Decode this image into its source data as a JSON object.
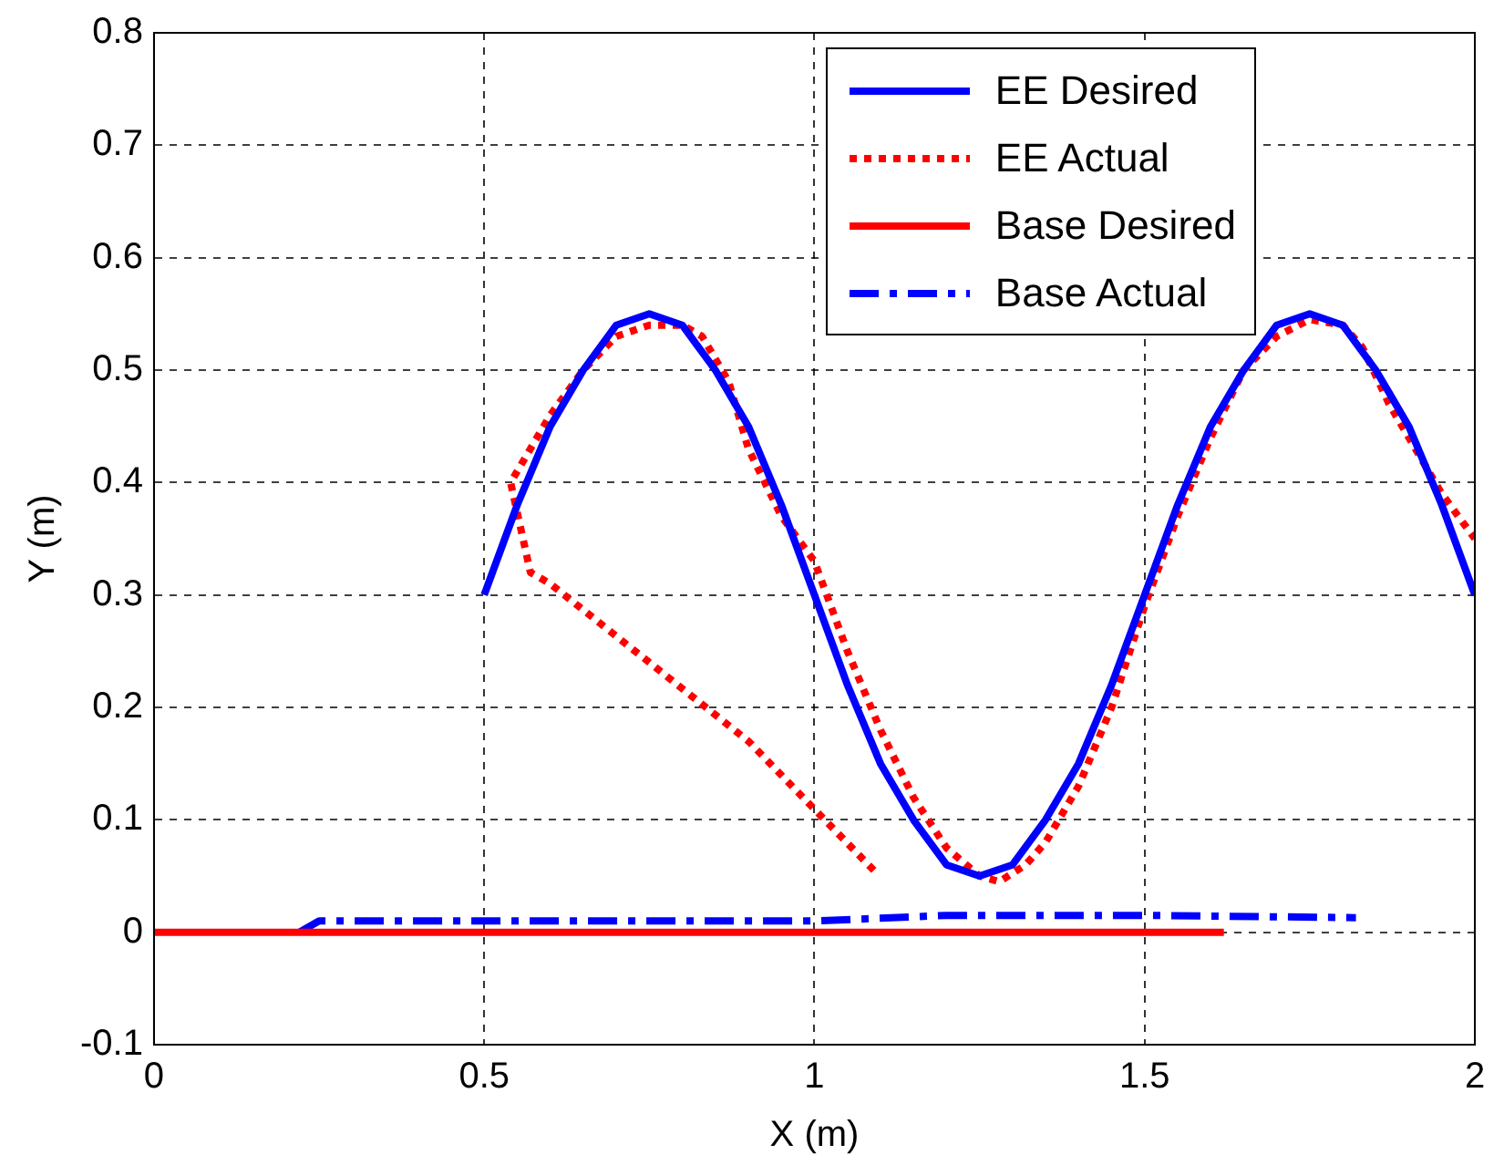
{
  "chart_data": {
    "type": "line",
    "xlabel": "X (m)",
    "ylabel": "Y (m)",
    "xlim": [
      0,
      2
    ],
    "xticks": [
      0,
      0.5,
      1,
      1.5,
      2
    ],
    "ylim": [
      -0.1,
      0.8
    ],
    "yticks": [
      -0.1,
      0,
      0.1,
      0.2,
      0.3,
      0.4,
      0.5,
      0.6,
      0.7,
      0.8
    ],
    "grid": true,
    "legend": "top right",
    "series": [
      {
        "name": "EE Desired",
        "color": "#0000ff",
        "line_style": "solid",
        "x": [
          0.5,
          0.55,
          0.6,
          0.65,
          0.7,
          0.75,
          0.8,
          0.85,
          0.9,
          0.95,
          1.0,
          1.05,
          1.1,
          1.15,
          1.2,
          1.25,
          1.3,
          1.35,
          1.4,
          1.45,
          1.5,
          1.55,
          1.6,
          1.65,
          1.7,
          1.75,
          1.8,
          1.85,
          1.9,
          1.95,
          2.0
        ],
        "values": [
          0.3,
          0.38,
          0.45,
          0.5,
          0.54,
          0.55,
          0.54,
          0.5,
          0.45,
          0.38,
          0.3,
          0.22,
          0.15,
          0.1,
          0.06,
          0.05,
          0.06,
          0.1,
          0.15,
          0.22,
          0.3,
          0.38,
          0.45,
          0.5,
          0.54,
          0.55,
          0.54,
          0.5,
          0.45,
          0.38,
          0.3
        ]
      },
      {
        "name": "EE Actual",
        "color": "#ff0000",
        "line_style": "dotted",
        "x": [
          1.09,
          0.9,
          0.75,
          0.6,
          0.57,
          0.54,
          0.56,
          0.6,
          0.65,
          0.7,
          0.75,
          0.8,
          0.83,
          0.87,
          0.9,
          0.95,
          1.0,
          1.05,
          1.1,
          1.15,
          1.2,
          1.25,
          1.28,
          1.32,
          1.35,
          1.4,
          1.45,
          1.5,
          1.55,
          1.6,
          1.65,
          1.7,
          1.75,
          1.8,
          1.83,
          1.87,
          1.9,
          1.95,
          2.0
        ],
        "values": [
          0.055,
          0.17,
          0.24,
          0.31,
          0.32,
          0.4,
          0.42,
          0.46,
          0.5,
          0.53,
          0.54,
          0.54,
          0.53,
          0.49,
          0.43,
          0.37,
          0.33,
          0.25,
          0.18,
          0.12,
          0.075,
          0.05,
          0.045,
          0.06,
          0.08,
          0.13,
          0.2,
          0.29,
          0.37,
          0.44,
          0.5,
          0.53,
          0.545,
          0.54,
          0.52,
          0.47,
          0.44,
          0.39,
          0.35
        ]
      },
      {
        "name": "Base Desired",
        "color": "#ff0000",
        "line_style": "solid",
        "x": [
          0,
          0.5,
          1.0,
          1.62
        ],
        "values": [
          0,
          0,
          0,
          0
        ]
      },
      {
        "name": "Base Actual",
        "color": "#0000ff",
        "line_style": "dashed",
        "x": [
          0.22,
          0.25,
          0.5,
          1.0,
          1.2,
          1.5,
          1.82
        ],
        "values": [
          0,
          0.01,
          0.01,
          0.01,
          0.015,
          0.015,
          0.013
        ]
      }
    ]
  }
}
